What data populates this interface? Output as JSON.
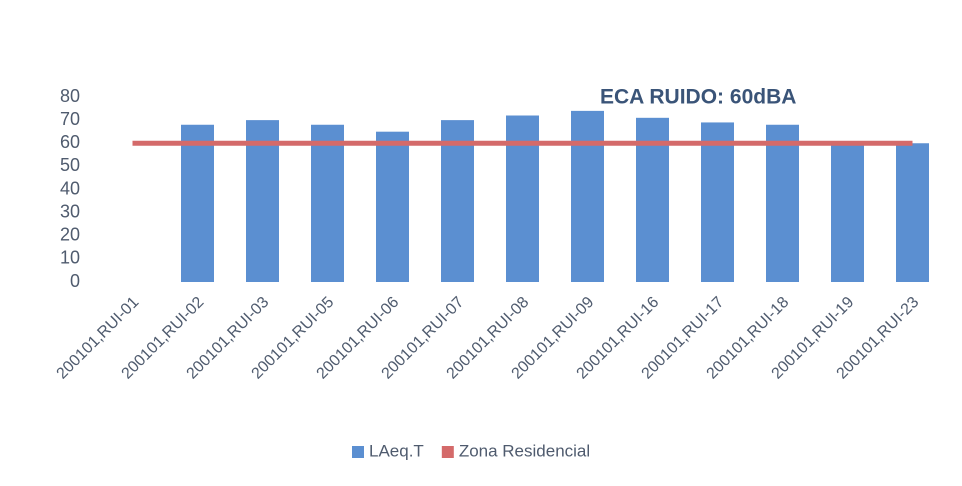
{
  "chart_data": {
    "type": "bar",
    "annotation": "ECA RUIDO: 60dBA",
    "categories": [
      "200101,RUI-01",
      "200101,RUI-02",
      "200101,RUI-03",
      "200101,RUI-05",
      "200101,RUI-06",
      "200101,RUI-07",
      "200101,RUI-08",
      "200101,RUI-09",
      "200101,RUI-16",
      "200101,RUI-17",
      "200101,RUI-18",
      "200101,RUI-19",
      "200101,RUI-23"
    ],
    "series": [
      {
        "name": "LAeq.T",
        "type": "bar",
        "color": "#5b8fd1",
        "values": [
          null,
          68,
          70,
          68,
          65,
          70,
          72,
          74,
          71,
          69,
          68,
          60,
          60
        ]
      },
      {
        "name": "Zona Residencial",
        "type": "line",
        "color": "#d46a6a",
        "values": [
          60,
          60,
          60,
          60,
          60,
          60,
          60,
          60,
          60,
          60,
          60,
          60,
          60
        ]
      }
    ],
    "ylim": [
      0,
      80
    ],
    "yticks": [
      0,
      10,
      20,
      30,
      40,
      50,
      60,
      70,
      80
    ],
    "grid": false,
    "legend": "bottom"
  }
}
